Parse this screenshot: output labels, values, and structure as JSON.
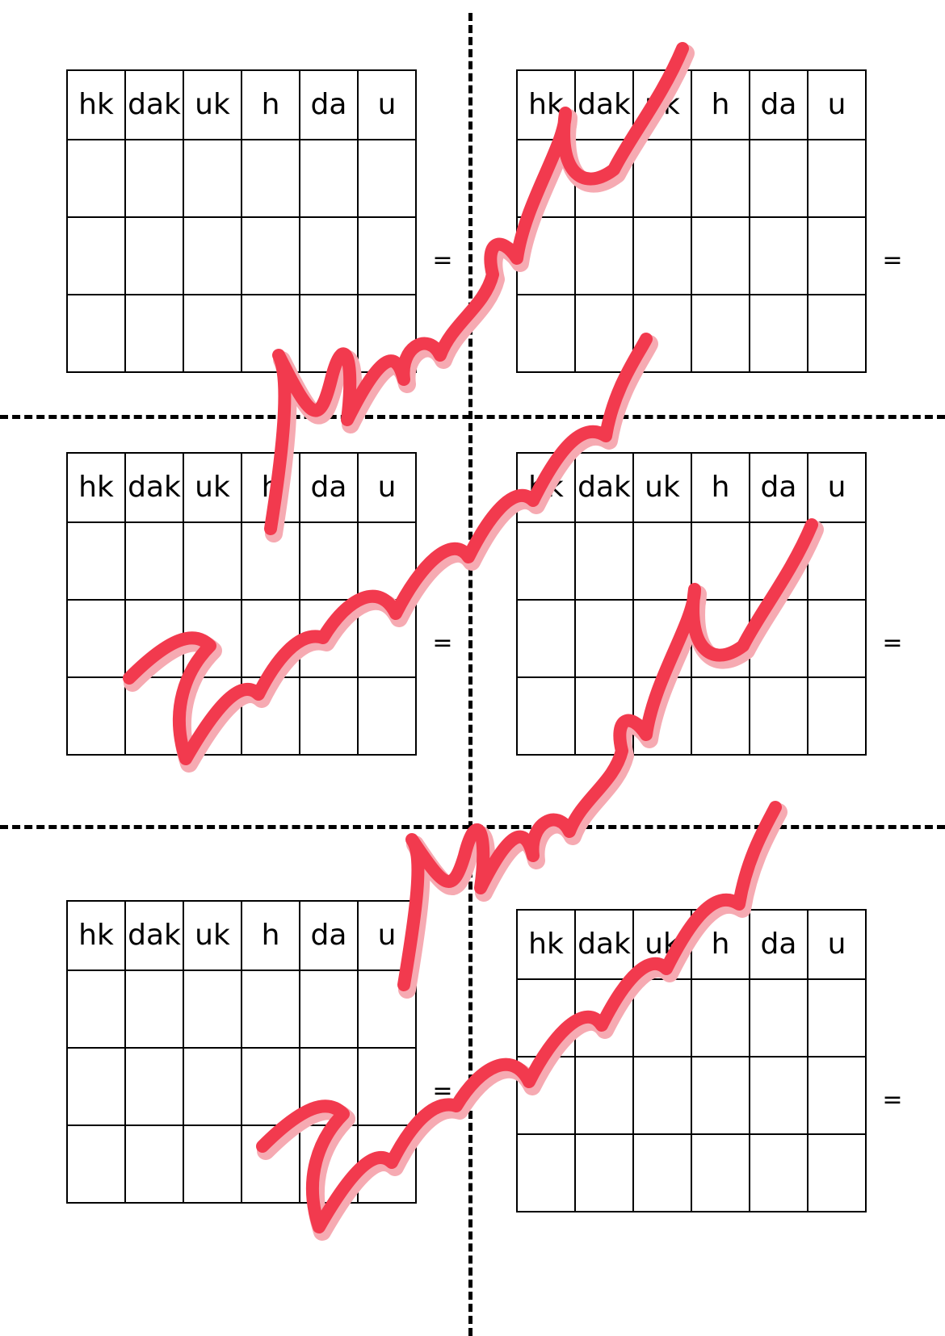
{
  "table_header": {
    "hk": "hk",
    "dak": "dak",
    "uk": "uk",
    "h": "h",
    "da": "da",
    "u": "u"
  },
  "equals_sign": "=",
  "watermark": {
    "line1": "Maestra",
    "line2": "Francesca",
    "color": "#f23a4e"
  },
  "colors": {
    "h": "#12b04e",
    "da": "#f03c3c",
    "u": "#1a12b8"
  }
}
